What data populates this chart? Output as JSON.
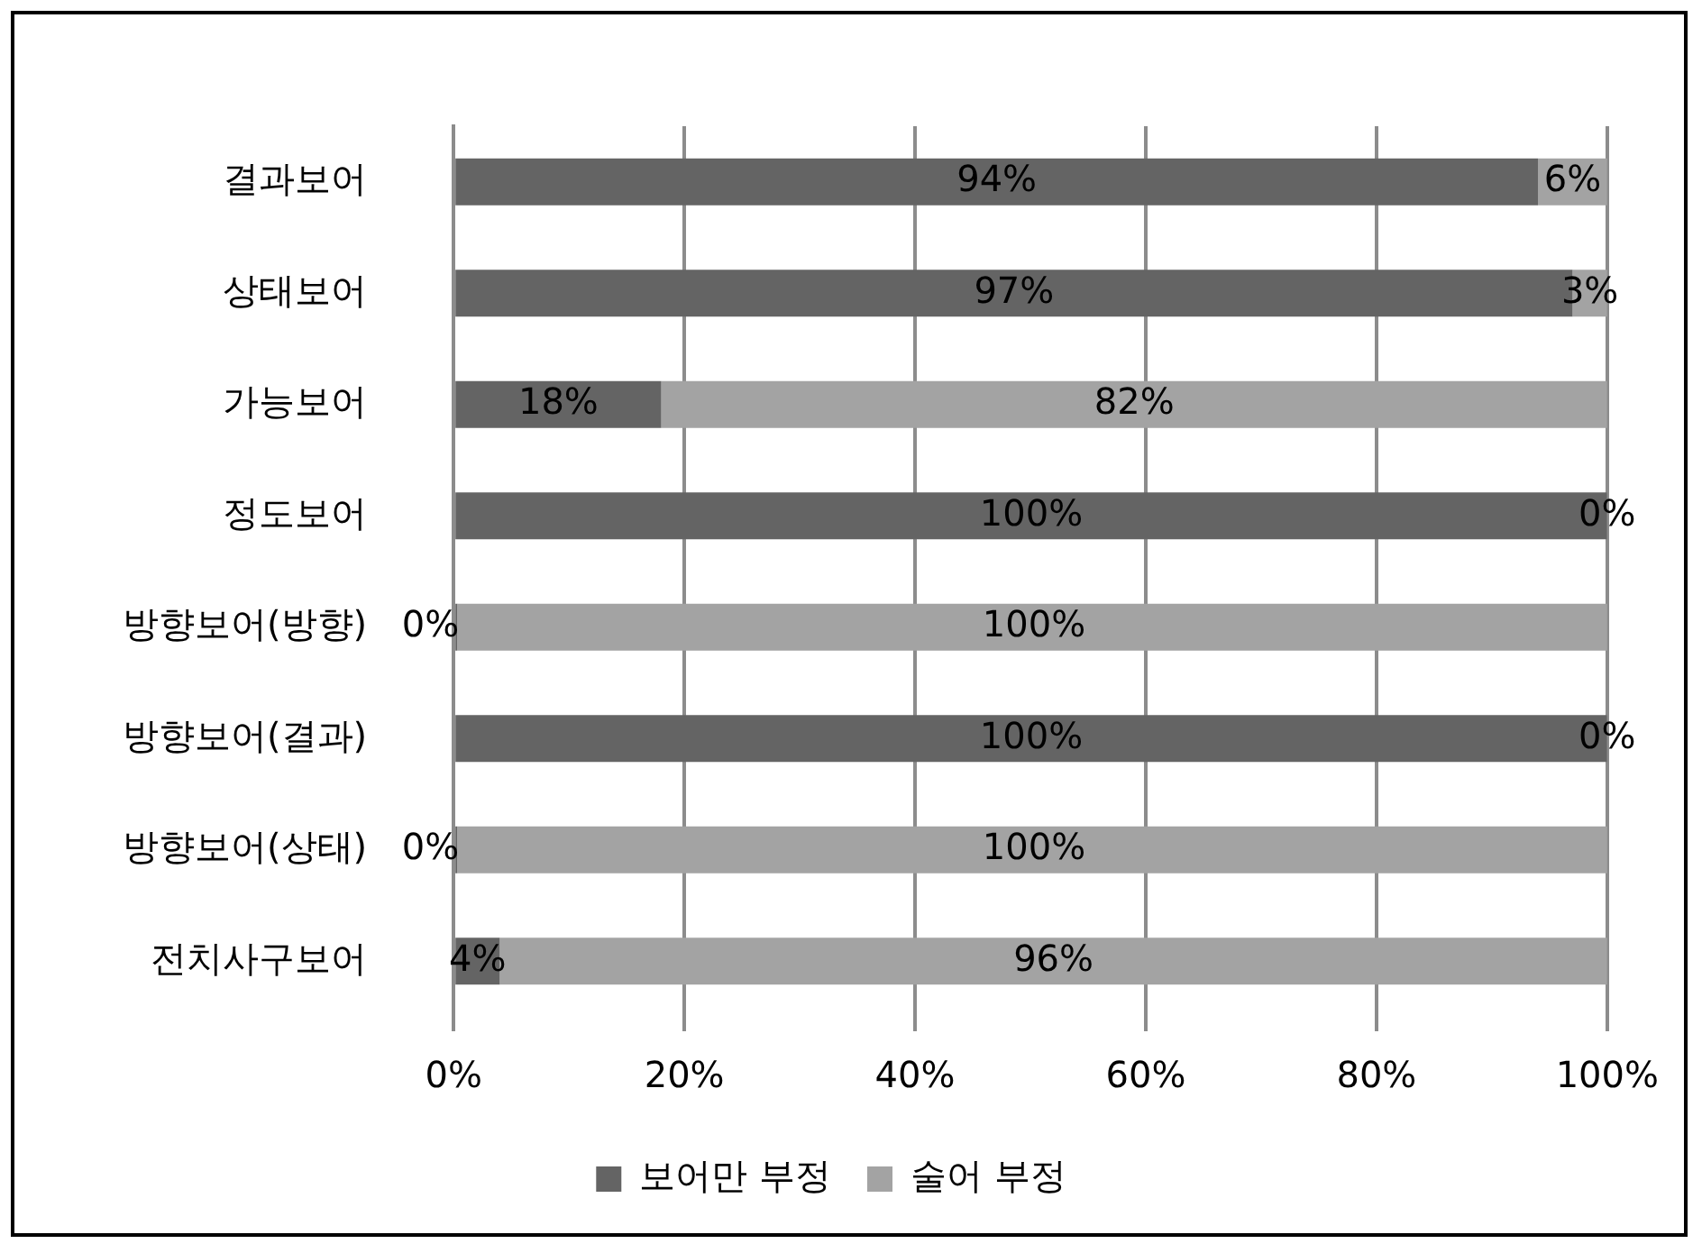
{
  "chart_data": {
    "type": "bar",
    "orientation": "horizontal",
    "stacked": true,
    "categories": [
      "결과보어",
      "상태보어",
      "가능보어",
      "정도보어",
      "방향보어(방향)",
      "방향보어(결과)",
      "방향보어(상태)",
      "전치사구보어"
    ],
    "series": [
      {
        "name": "보어만 부정",
        "color": "#646464",
        "values": [
          94,
          97,
          18,
          100,
          0,
          100,
          0,
          4
        ],
        "value_labels": [
          "94%",
          "97%",
          "18%",
          "100%",
          "0%",
          "100%",
          "0%",
          "4%"
        ]
      },
      {
        "name": "술어 부정",
        "color": "#a3a3a3",
        "values": [
          6,
          3,
          82,
          0,
          100,
          0,
          100,
          96
        ],
        "value_labels": [
          "6%",
          "3%",
          "82%",
          "0%",
          "100%",
          "0%",
          "100%",
          "96%"
        ]
      }
    ],
    "xlim": [
      0,
      100
    ],
    "xticks": [
      {
        "value": 0,
        "label": "0%"
      },
      {
        "value": 20,
        "label": "20%"
      },
      {
        "value": 40,
        "label": "40%"
      },
      {
        "value": 60,
        "label": "60%"
      },
      {
        "value": 80,
        "label": "80%"
      },
      {
        "value": 100,
        "label": "100%"
      }
    ],
    "grid": "x",
    "legend": "bottom"
  }
}
